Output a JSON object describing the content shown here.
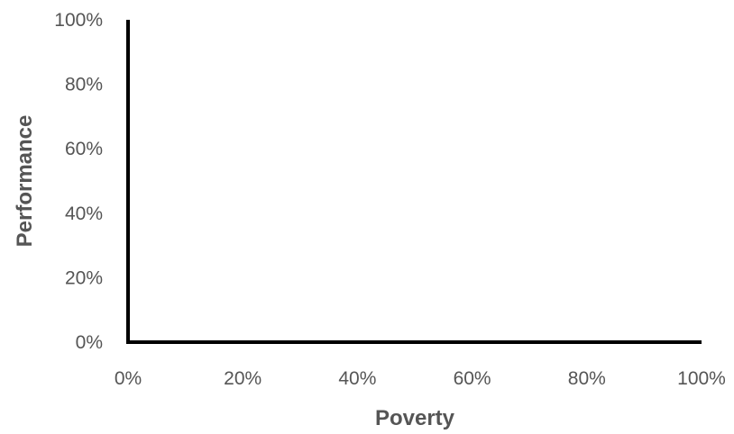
{
  "chart_data": {
    "type": "scatter",
    "title": "",
    "xlabel": "Poverty",
    "ylabel": "Performance",
    "xlim": [
      0,
      1
    ],
    "ylim": [
      0,
      1
    ],
    "x_ticks": [
      0,
      0.2,
      0.4,
      0.6,
      0.8,
      1.0
    ],
    "y_ticks": [
      0,
      0.2,
      0.4,
      0.6,
      0.8,
      1.0
    ],
    "x_tick_labels": [
      "0%",
      "20%",
      "40%",
      "60%",
      "80%",
      "100%"
    ],
    "y_tick_labels": [
      "0%",
      "20%",
      "40%",
      "60%",
      "80%",
      "100%"
    ],
    "grid": false,
    "legend": "none",
    "series": [],
    "axis_color": "#000000",
    "text_color": "#555555"
  }
}
